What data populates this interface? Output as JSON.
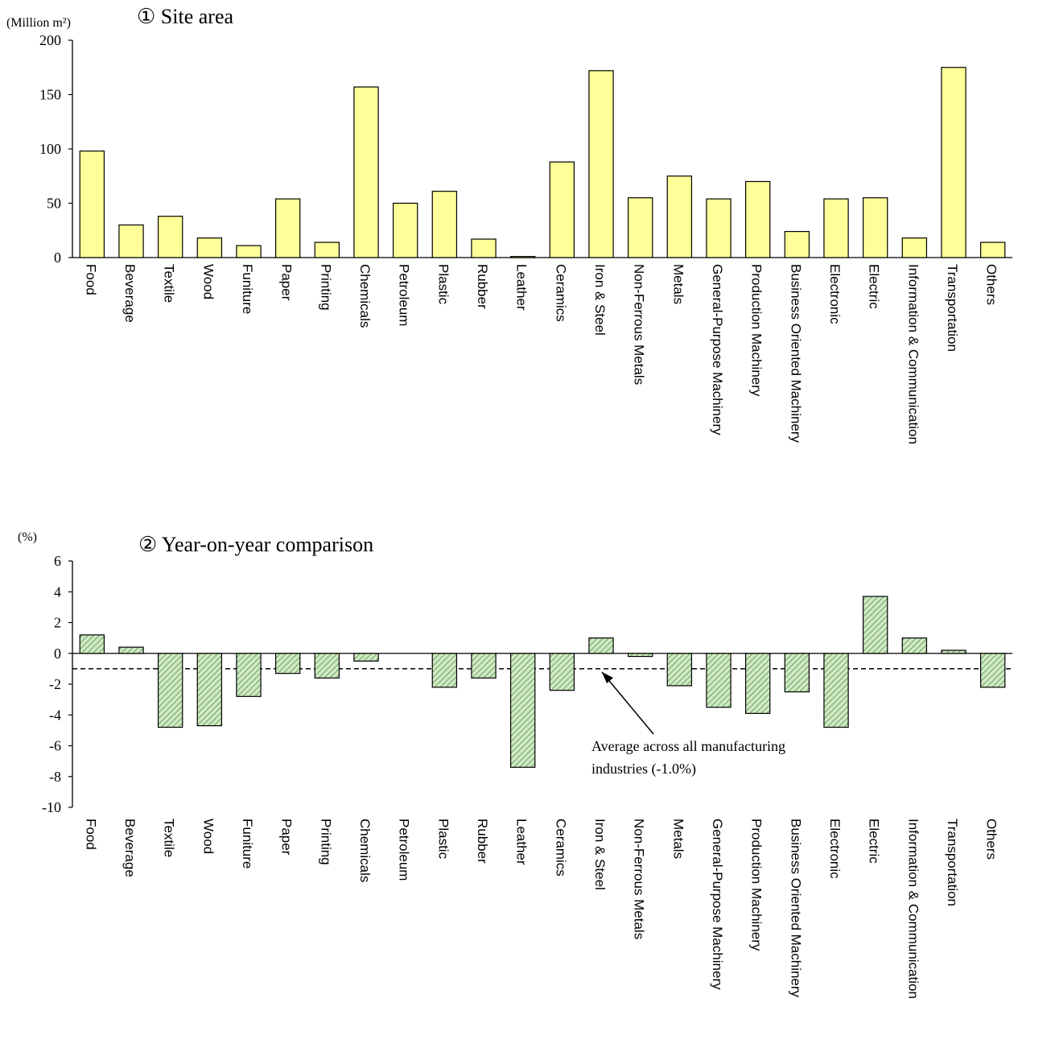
{
  "chart_data": [
    {
      "type": "bar",
      "title": "① Site area",
      "unit_label": "(Million m²)",
      "ylim": [
        0,
        200
      ],
      "yticks": [
        0,
        50,
        100,
        150,
        200
      ],
      "categories": [
        "Food",
        "Beverage",
        "Textile",
        "Wood",
        "Funiture",
        "Paper",
        "Printing",
        "Chemicals",
        "Petroleum",
        "Plastic",
        "Rubber",
        "Leather",
        "Ceramics",
        "Iron & Steel",
        "Non-Ferrous Metals",
        "Metals",
        "General-Purpose Machinery",
        "Production Machinery",
        "Business Oriented Machinery",
        "Electronic",
        "Electric",
        "Information & Communication",
        "Transportation",
        "Others"
      ],
      "values": [
        98,
        30,
        38,
        18,
        11,
        54,
        14,
        157,
        50,
        61,
        17,
        1,
        88,
        172,
        55,
        75,
        54,
        70,
        24,
        54,
        55,
        18,
        175,
        14
      ],
      "colors": {
        "bar": "#ffff99",
        "border": "#000000"
      },
      "grid": false
    },
    {
      "type": "bar",
      "title": "② Year-on-year comparison",
      "unit_label": "(%)",
      "ylim": [
        -10,
        6
      ],
      "yticks": [
        6,
        4,
        2,
        0,
        -2,
        -4,
        -6,
        -8,
        -10
      ],
      "categories": [
        "Food",
        "Beverage",
        "Textile",
        "Wood",
        "Funiture",
        "Paper",
        "Printing",
        "Chemicals",
        "Petroleum",
        "Plastic",
        "Rubber",
        "Leather",
        "Ceramics",
        "Iron & Steel",
        "Non-Ferrous Metals",
        "Metals",
        "General-Purpose Machinery",
        "Production Machinery",
        "Business Oriented Machinery",
        "Electronic",
        "Electric",
        "Information & Communication",
        "Transportation",
        "Others"
      ],
      "values": [
        1.2,
        0.4,
        -4.8,
        -4.7,
        -2.8,
        -1.3,
        -1.6,
        -0.5,
        0,
        -2.2,
        -1.6,
        -7.4,
        -2.4,
        1.0,
        -0.2,
        -2.1,
        -3.5,
        -3.9,
        -2.5,
        -4.8,
        3.7,
        1.0,
        0.2,
        -2.2
      ],
      "reference_line": {
        "value": -1.0,
        "style": "dashed"
      },
      "annotation": {
        "lines": [
          "Average across all manufacturing",
          "industries (-1.0%)"
        ]
      },
      "colors": {
        "bar": "#cfe9c4",
        "hatch": "#6fa05f",
        "border": "#000000"
      },
      "grid": false
    }
  ]
}
